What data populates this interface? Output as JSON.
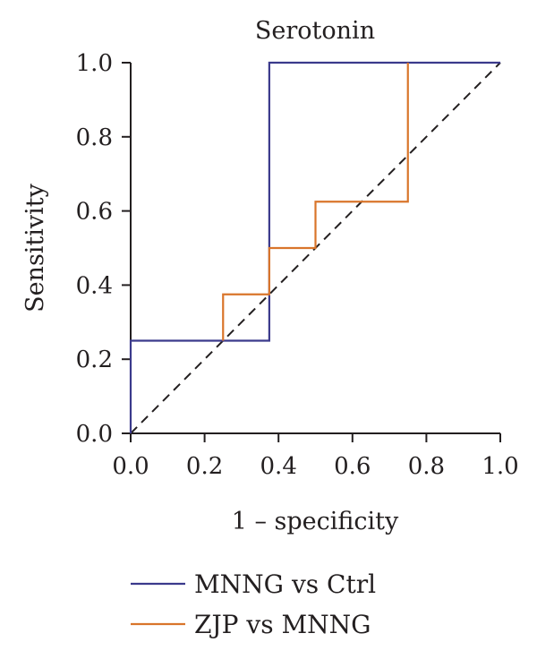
{
  "chart_data": {
    "type": "line",
    "title": "Serotonin",
    "xlabel": "1 – specificity",
    "ylabel": "Sensitivity",
    "xlim": [
      0,
      1
    ],
    "ylim": [
      0,
      1
    ],
    "x_ticks": [
      "0.0",
      "0.2",
      "0.4",
      "0.6",
      "0.8",
      "1.0"
    ],
    "y_ticks": [
      "0.0",
      "0.2",
      "0.4",
      "0.6",
      "0.8",
      "1.0"
    ],
    "grid": false,
    "legend_position": "bottom",
    "reference_line": {
      "style": "dashed",
      "color": "#231f20",
      "points": [
        [
          0,
          0
        ],
        [
          1,
          1
        ]
      ]
    },
    "series": [
      {
        "name": "MNNG vs Ctrl",
        "color": "#3b3a8c",
        "x": [
          0,
          0,
          0.375,
          0.375,
          1
        ],
        "y": [
          0,
          0.25,
          0.25,
          1,
          1
        ]
      },
      {
        "name": "ZJP vs MNNG",
        "color": "#d9752b",
        "x": [
          0.25,
          0.25,
          0.375,
          0.375,
          0.5,
          0.5,
          0.75,
          0.75
        ],
        "y": [
          0.25,
          0.375,
          0.375,
          0.5,
          0.5,
          0.625,
          0.625,
          1
        ]
      }
    ]
  }
}
